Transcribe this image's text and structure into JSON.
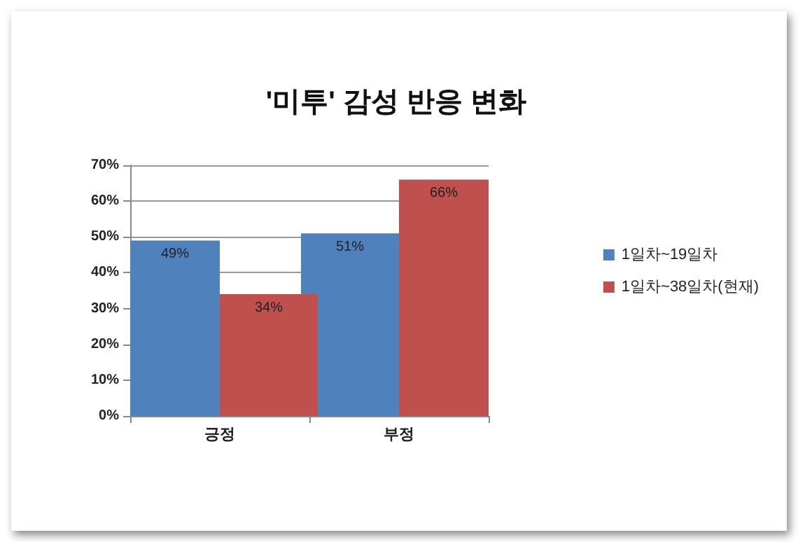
{
  "chart_data": {
    "type": "bar",
    "title": "'미투' 감성 반응 변화",
    "categories": [
      "긍정",
      "부정"
    ],
    "series": [
      {
        "name": "1일차~19일차",
        "color": "#4f81bd",
        "values": [
          49,
          51
        ],
        "value_labels": [
          "49%",
          "51%"
        ]
      },
      {
        "name": "1일차~38일차(현재)",
        "color": "#c0504d",
        "values": [
          34,
          66
        ],
        "value_labels": [
          "34%",
          "66%"
        ]
      }
    ],
    "ylim": [
      0,
      70
    ],
    "yticks": [
      {
        "value": 0,
        "label": "0%"
      },
      {
        "value": 10,
        "label": "10%"
      },
      {
        "value": 20,
        "label": "20%"
      },
      {
        "value": 30,
        "label": "30%"
      },
      {
        "value": 40,
        "label": "40%"
      },
      {
        "value": 50,
        "label": "50%"
      },
      {
        "value": 60,
        "label": "60%"
      },
      {
        "value": 70,
        "label": "70%"
      }
    ],
    "grid": "y",
    "legend": "right"
  }
}
